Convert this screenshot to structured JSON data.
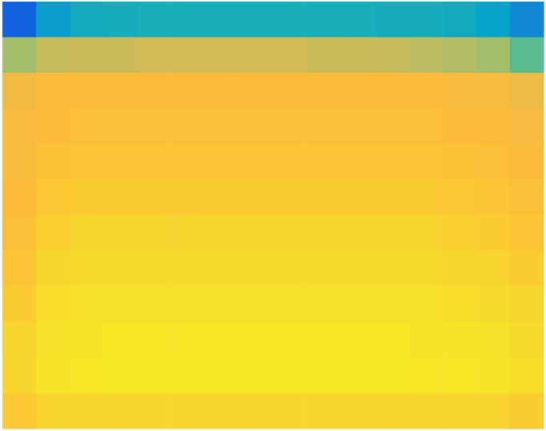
{
  "chart_data": {
    "type": "heatmap",
    "tick_labels": false,
    "zlim": [
      0,
      1
    ],
    "cells": [
      [
        0.12,
        0.28,
        0.33,
        0.34,
        0.35,
        0.35,
        0.35,
        0.35,
        0.35,
        0.35,
        0.35,
        0.34,
        0.34,
        0.33,
        0.3,
        0.22
      ],
      [
        0.55,
        0.62,
        0.63,
        0.63,
        0.64,
        0.64,
        0.64,
        0.64,
        0.64,
        0.63,
        0.63,
        0.62,
        0.6,
        0.58,
        0.55,
        0.45
      ],
      [
        0.74,
        0.79,
        0.8,
        0.8,
        0.8,
        0.8,
        0.8,
        0.8,
        0.8,
        0.8,
        0.8,
        0.8,
        0.79,
        0.78,
        0.77,
        0.72
      ],
      [
        0.77,
        0.8,
        0.81,
        0.81,
        0.81,
        0.81,
        0.81,
        0.81,
        0.81,
        0.81,
        0.81,
        0.81,
        0.81,
        0.8,
        0.79,
        0.76
      ],
      [
        0.78,
        0.82,
        0.83,
        0.83,
        0.83,
        0.83,
        0.83,
        0.83,
        0.83,
        0.83,
        0.83,
        0.83,
        0.83,
        0.82,
        0.81,
        0.79
      ],
      [
        0.8,
        0.84,
        0.85,
        0.85,
        0.85,
        0.85,
        0.85,
        0.85,
        0.85,
        0.85,
        0.85,
        0.85,
        0.85,
        0.84,
        0.83,
        0.81
      ],
      [
        0.81,
        0.86,
        0.87,
        0.87,
        0.87,
        0.87,
        0.87,
        0.87,
        0.87,
        0.87,
        0.87,
        0.87,
        0.87,
        0.86,
        0.85,
        0.83
      ],
      [
        0.83,
        0.88,
        0.89,
        0.89,
        0.89,
        0.89,
        0.89,
        0.89,
        0.89,
        0.89,
        0.89,
        0.89,
        0.89,
        0.88,
        0.87,
        0.85
      ],
      [
        0.85,
        0.9,
        0.91,
        0.91,
        0.91,
        0.91,
        0.91,
        0.91,
        0.91,
        0.91,
        0.91,
        0.91,
        0.91,
        0.9,
        0.89,
        0.87
      ],
      [
        0.87,
        0.92,
        0.93,
        0.94,
        0.94,
        0.94,
        0.94,
        0.94,
        0.94,
        0.94,
        0.94,
        0.94,
        0.93,
        0.93,
        0.92,
        0.89
      ],
      [
        0.88,
        0.93,
        0.94,
        0.95,
        0.95,
        0.95,
        0.95,
        0.95,
        0.95,
        0.95,
        0.95,
        0.95,
        0.94,
        0.94,
        0.93,
        0.9
      ],
      [
        0.84,
        0.87,
        0.88,
        0.88,
        0.88,
        0.88,
        0.88,
        0.88,
        0.88,
        0.88,
        0.88,
        0.88,
        0.88,
        0.87,
        0.87,
        0.85
      ]
    ]
  }
}
